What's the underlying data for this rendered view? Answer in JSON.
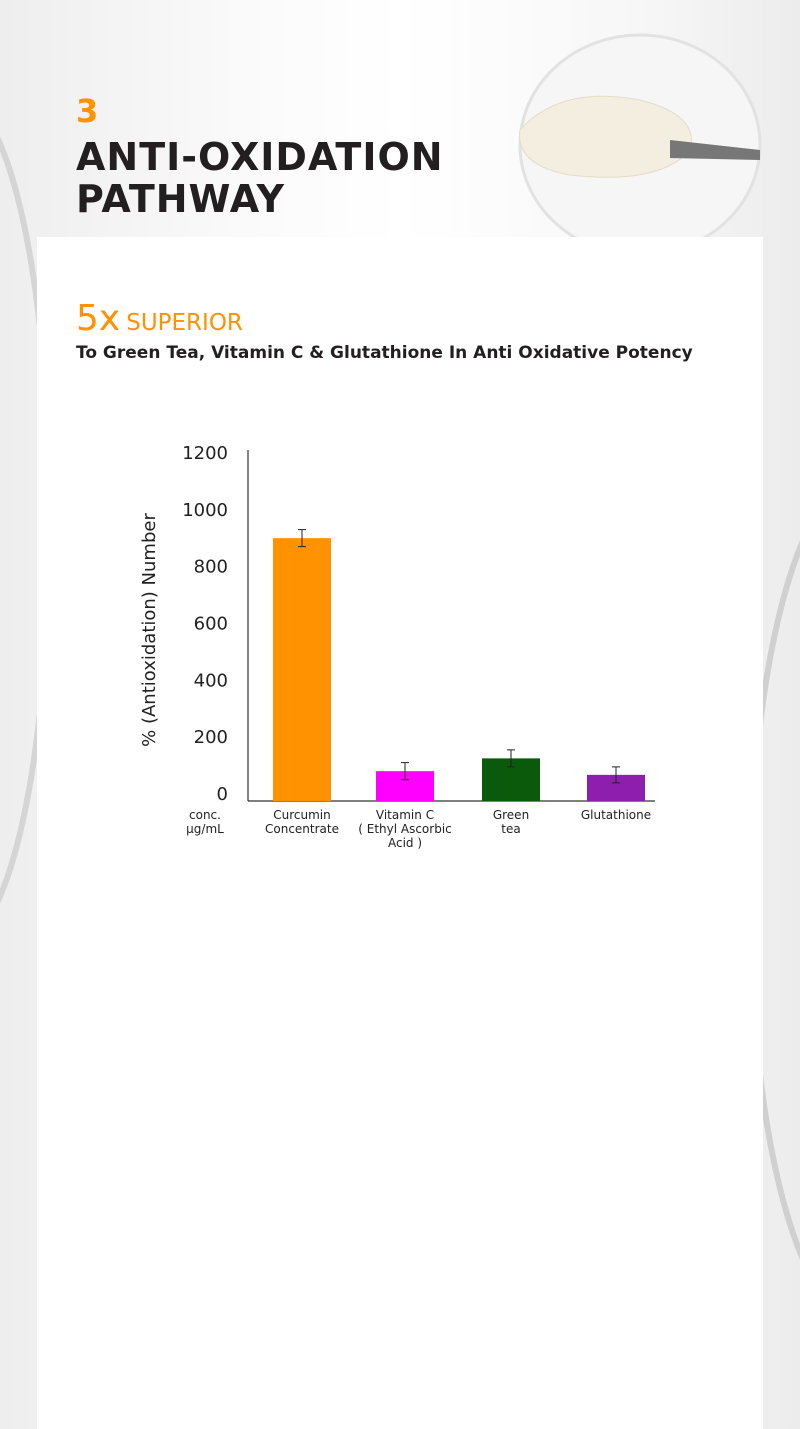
{
  "header": {
    "number": "3",
    "title_lines": [
      "ANTI-OXIDATION",
      "PATHWAY"
    ],
    "highlight": "5x",
    "highlight_text": "SUPERIOR",
    "subtitle": "To Green Tea, Vitamin C & Glutathione In Anti Oxidative Potency"
  },
  "chart_data": {
    "type": "bar",
    "y_label": "% (Antioxidation) Number",
    "x_unit_label": "conc.\nµg/mL",
    "categories": [
      "Curcumin\nConcentrate",
      "Vitamin C\n( Ethyl Ascorbic\nAcid )",
      "Green\ntea",
      "Glutathione"
    ],
    "values": [
      925,
      105,
      150,
      92
    ],
    "errors": [
      30,
      30,
      30,
      28
    ],
    "colors": [
      "#ff9200",
      "#ff00ff",
      "#0b5a0b",
      "#8e1fae"
    ],
    "ylim": [
      0,
      1200
    ],
    "yticks": [
      0,
      200,
      400,
      600,
      800,
      1000,
      1200
    ],
    "grid": false
  }
}
